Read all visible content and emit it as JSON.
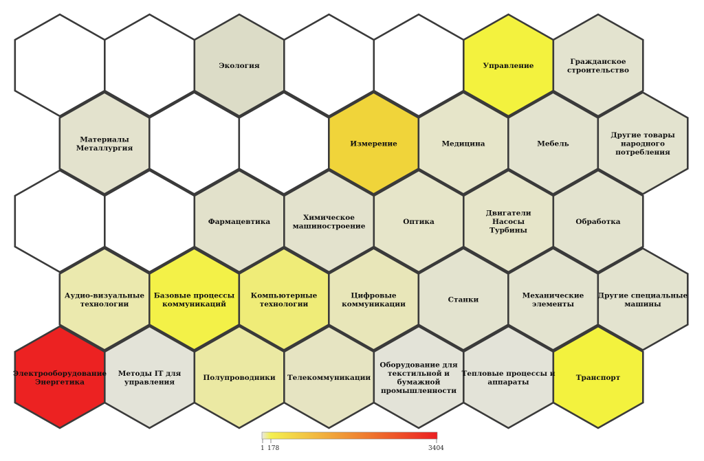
{
  "chart_data": {
    "type": "heatmap",
    "layout": "hexagonal self-organizing map",
    "rows": 5,
    "columns": 7,
    "cells": [
      {
        "row": 0,
        "col": 0,
        "label": "",
        "color": "#ffffff"
      },
      {
        "row": 0,
        "col": 1,
        "label": "",
        "color": "#ffffff"
      },
      {
        "row": 0,
        "col": 2,
        "label": "Экология",
        "color": "#dcdcc7"
      },
      {
        "row": 0,
        "col": 3,
        "label": "",
        "color": "#ffffff"
      },
      {
        "row": 0,
        "col": 4,
        "label": "",
        "color": "#ffffff"
      },
      {
        "row": 0,
        "col": 5,
        "label": "Управление",
        "color": "#f3f23e"
      },
      {
        "row": 0,
        "col": 6,
        "label": "Гражданское\nстроительство",
        "color": "#e3e3cf"
      },
      {
        "row": 1,
        "col": 0,
        "label": "Материалы\nМеталлургия",
        "color": "#e3e2cd"
      },
      {
        "row": 1,
        "col": 1,
        "label": "",
        "color": "#ffffff"
      },
      {
        "row": 1,
        "col": 2,
        "label": "",
        "color": "#ffffff"
      },
      {
        "row": 1,
        "col": 3,
        "label": "Измерение",
        "color": "#f0d43a"
      },
      {
        "row": 1,
        "col": 4,
        "label": "Медицина",
        "color": "#e6e5c9"
      },
      {
        "row": 1,
        "col": 5,
        "label": "Мебель",
        "color": "#e3e3cf"
      },
      {
        "row": 1,
        "col": 6,
        "label": "Другие товары\nнародного\nпотребления",
        "color": "#e3e3cf"
      },
      {
        "row": 2,
        "col": 0,
        "label": "",
        "color": "#ffffff"
      },
      {
        "row": 2,
        "col": 1,
        "label": "",
        "color": "#ffffff"
      },
      {
        "row": 2,
        "col": 2,
        "label": "Фармацевтика",
        "color": "#e2e1cb"
      },
      {
        "row": 2,
        "col": 3,
        "label": "Химическое\nмашиностроение",
        "color": "#e3e2cd"
      },
      {
        "row": 2,
        "col": 4,
        "label": "Оптика",
        "color": "#e6e5c9"
      },
      {
        "row": 2,
        "col": 5,
        "label": "Двигатели\nНасосы\nТурбины",
        "color": "#e6e5c9"
      },
      {
        "row": 2,
        "col": 6,
        "label": "Обработка",
        "color": "#e3e3cf"
      },
      {
        "row": 3,
        "col": 0,
        "label": "Аудио-визуальные\nтехнологии",
        "color": "#ebe9ae"
      },
      {
        "row": 3,
        "col": 1,
        "label": "Базовые процессы\nкоммуникаций",
        "color": "#f3f148"
      },
      {
        "row": 3,
        "col": 2,
        "label": "Компьютерные\nтехнологии",
        "color": "#efec78"
      },
      {
        "row": 3,
        "col": 3,
        "label": "Цифровые\nкоммуникации",
        "color": "#e8e6b9"
      },
      {
        "row": 3,
        "col": 4,
        "label": "Станки",
        "color": "#e3e3cf"
      },
      {
        "row": 3,
        "col": 5,
        "label": "Механические\nэлементы",
        "color": "#e3e3cf"
      },
      {
        "row": 3,
        "col": 6,
        "label": "Другие специальные\nмашины",
        "color": "#e3e3cf"
      },
      {
        "row": 4,
        "col": 0,
        "label": "Электрооборудование\nЭнергетика",
        "color": "#ec2222"
      },
      {
        "row": 4,
        "col": 1,
        "label": "Методы IT для\nуправления",
        "color": "#e3e3d8"
      },
      {
        "row": 4,
        "col": 2,
        "label": "Полупроводники",
        "color": "#ebe9a3"
      },
      {
        "row": 4,
        "col": 3,
        "label": "Телекоммуникации",
        "color": "#e6e4c2"
      },
      {
        "row": 4,
        "col": 4,
        "label": "Оборудование для\nтекстильной и\nбумажной\nпромышленности",
        "color": "#e3e3d8"
      },
      {
        "row": 4,
        "col": 5,
        "label": "Тепловые процессы и\nаппараты",
        "color": "#e3e3d8"
      },
      {
        "row": 4,
        "col": 6,
        "label": "Транспорт",
        "color": "#f3f23e"
      }
    ],
    "legend": {
      "min_label": "1",
      "mid_label": "178",
      "max_label": "3404",
      "min": 1,
      "mid": 178,
      "max": 3404,
      "colors": [
        "#e9e9e0",
        "#f4f050",
        "#ef7a2e",
        "#ec1f22"
      ]
    }
  }
}
